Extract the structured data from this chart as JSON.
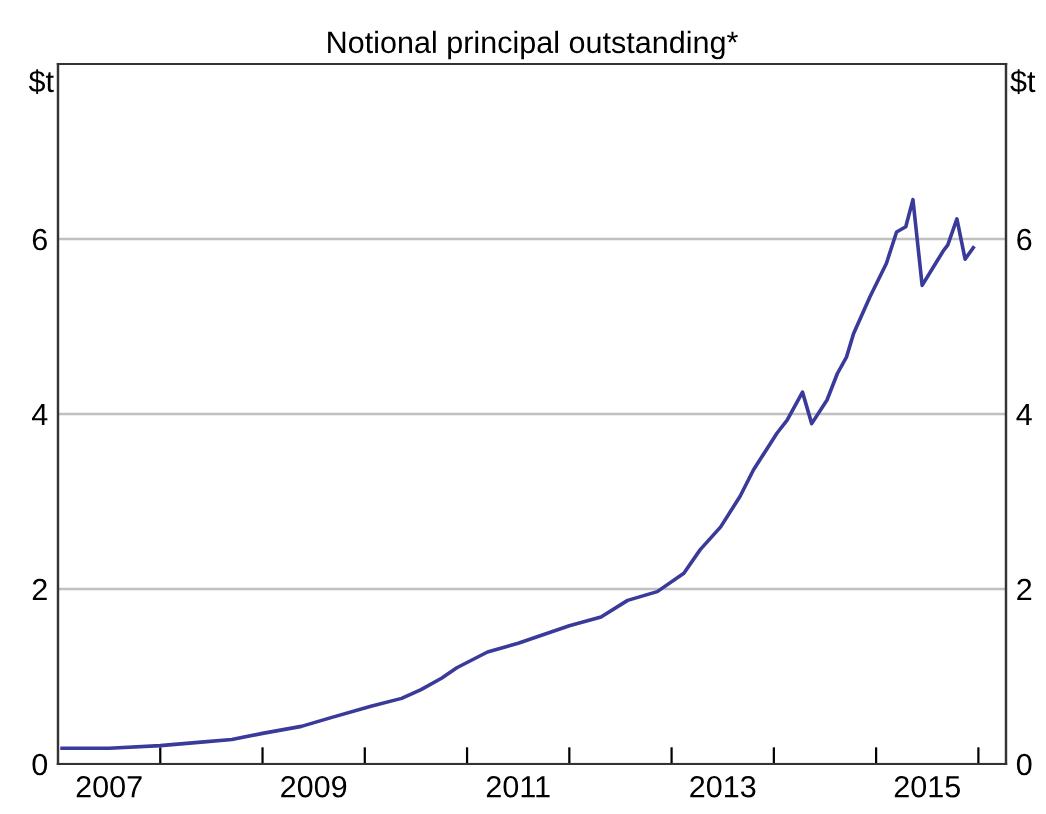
{
  "chart_data": {
    "type": "line",
    "title": "Notional principal outstanding*",
    "ylabel": "$t",
    "y2label": "$t",
    "x": [
      2007.04,
      2007.5,
      2008.0,
      2008.4,
      2008.7,
      2009.0,
      2009.38,
      2009.67,
      2010.06,
      2010.36,
      2010.55,
      2010.75,
      2010.9,
      2011.2,
      2011.5,
      2011.8,
      2012.0,
      2012.31,
      2012.57,
      2012.86,
      2013.12,
      2013.28,
      2013.48,
      2013.67,
      2013.8,
      2014.03,
      2014.13,
      2014.28,
      2014.37,
      2014.52,
      2014.62,
      2014.71,
      2014.78,
      2014.94,
      2015.1,
      2015.2,
      2015.29,
      2015.36,
      2015.45,
      2015.56,
      2015.66,
      2015.7,
      2015.79,
      2015.87,
      2015.95
    ],
    "series": [
      {
        "color": "#3a3a9a",
        "values": [
          0.18,
          0.18,
          0.21,
          0.25,
          0.28,
          0.35,
          0.43,
          0.53,
          0.66,
          0.75,
          0.85,
          0.98,
          1.1,
          1.28,
          1.38,
          1.5,
          1.58,
          1.68,
          1.87,
          1.97,
          2.18,
          2.45,
          2.71,
          3.06,
          3.36,
          3.78,
          3.93,
          4.25,
          3.89,
          4.16,
          4.46,
          4.65,
          4.92,
          5.34,
          5.72,
          6.08,
          6.14,
          6.45,
          5.47,
          5.68,
          5.87,
          5.93,
          6.23,
          5.77,
          5.9
        ]
      }
    ],
    "xlim": [
      2007.0,
      2016.27
    ],
    "xticks": [
      {
        "value": 2008,
        "label": null
      },
      {
        "value": 2009,
        "label": null
      },
      {
        "value": 2010,
        "label": null
      },
      {
        "value": 2011,
        "label": null
      },
      {
        "value": 2012,
        "label": null
      },
      {
        "value": 2013,
        "label": null
      },
      {
        "value": 2014,
        "label": null
      },
      {
        "value": 2015,
        "label": null
      },
      {
        "value": 2016,
        "label": null
      },
      {
        "value": 2007.5,
        "label": "2007"
      },
      {
        "value": 2009.5,
        "label": "2009"
      },
      {
        "value": 2011.5,
        "label": "2011"
      },
      {
        "value": 2013.5,
        "label": "2013"
      },
      {
        "value": 2015.5,
        "label": "2015"
      }
    ],
    "ylim": [
      0,
      8
    ],
    "yticks": [
      0,
      2,
      4,
      6
    ],
    "y2lim": [
      0,
      8
    ],
    "y2ticks": [
      0,
      2,
      4,
      6
    ],
    "grid": "y",
    "legend": false,
    "line_style": "solid",
    "marker": "none"
  }
}
